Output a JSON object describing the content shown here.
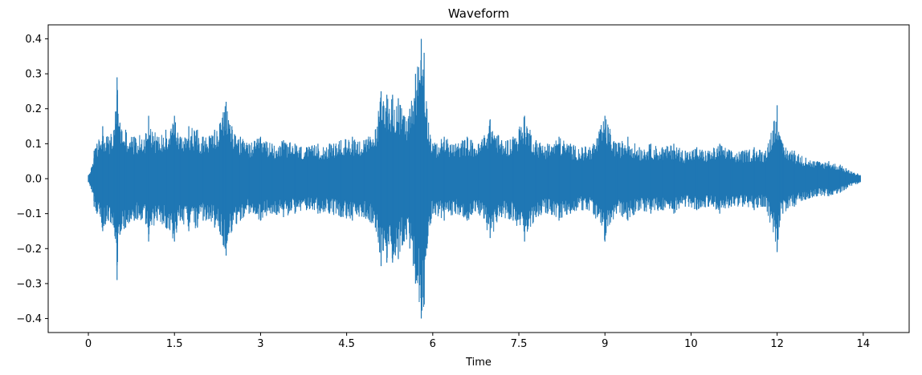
{
  "chart_data": {
    "type": "line",
    "title": "Waveform",
    "xlabel": "Time",
    "ylabel": "",
    "xlim": [
      -0.7,
      14.3
    ],
    "ylim": [
      -0.44,
      0.44
    ],
    "grid": false,
    "legend": "none",
    "x_ticks": [
      {
        "value": 0,
        "label": "0"
      },
      {
        "value": 1.5,
        "label": "1.5"
      },
      {
        "value": 3,
        "label": "3"
      },
      {
        "value": 4.5,
        "label": "4.5"
      },
      {
        "value": 6,
        "label": "6"
      },
      {
        "value": 7.5,
        "label": "7.5"
      },
      {
        "value": 9,
        "label": "9"
      },
      {
        "value": 10.5,
        "label": "10"
      },
      {
        "value": 12,
        "label": "12"
      },
      {
        "value": 13.5,
        "label": "14"
      }
    ],
    "y_ticks": [
      {
        "value": 0.4,
        "label": "0.4"
      },
      {
        "value": 0.3,
        "label": "0.3"
      },
      {
        "value": 0.2,
        "label": "0.2"
      },
      {
        "value": 0.1,
        "label": "0.1"
      },
      {
        "value": 0.0,
        "label": "0.0"
      },
      {
        "value": -0.1,
        "label": "−0.1"
      },
      {
        "value": -0.2,
        "label": "−0.2"
      },
      {
        "value": -0.3,
        "label": "−0.3"
      },
      {
        "value": -0.4,
        "label": "−0.4"
      }
    ],
    "series": [
      {
        "color": "#1f77b4",
        "envelope": {
          "x": [
            0.0,
            0.05,
            0.1,
            0.15,
            0.25,
            0.35,
            0.45,
            0.5,
            0.55,
            0.65,
            0.8,
            1.0,
            1.05,
            1.2,
            1.35,
            1.5,
            1.6,
            1.75,
            1.9,
            2.0,
            2.2,
            2.3,
            2.35,
            2.4,
            2.5,
            2.65,
            2.8,
            3.0,
            3.2,
            3.4,
            3.6,
            3.8,
            4.0,
            4.2,
            4.4,
            4.6,
            4.8,
            5.0,
            5.1,
            5.2,
            5.3,
            5.4,
            5.5,
            5.6,
            5.7,
            5.8,
            5.85,
            5.9,
            6.0,
            6.2,
            6.4,
            6.6,
            6.8,
            7.0,
            7.2,
            7.4,
            7.6,
            7.8,
            8.0,
            8.2,
            8.4,
            8.6,
            8.8,
            9.0,
            9.2,
            9.4,
            9.6,
            9.8,
            10.0,
            10.2,
            10.4,
            10.6,
            10.8,
            11.0,
            11.2,
            11.4,
            11.6,
            11.8,
            12.0,
            12.05,
            12.1,
            12.3,
            12.5,
            12.7,
            12.9,
            13.1,
            13.2,
            13.3,
            13.4,
            13.45
          ],
          "peak": [
            0.01,
            0.03,
            0.08,
            0.1,
            0.15,
            0.12,
            0.14,
            0.29,
            0.16,
            0.14,
            0.12,
            0.13,
            0.18,
            0.12,
            0.14,
            0.18,
            0.12,
            0.15,
            0.14,
            0.12,
            0.14,
            0.16,
            0.19,
            0.22,
            0.15,
            0.12,
            0.1,
            0.12,
            0.1,
            0.11,
            0.1,
            0.09,
            0.1,
            0.1,
            0.11,
            0.12,
            0.11,
            0.14,
            0.25,
            0.24,
            0.24,
            0.23,
            0.18,
            0.2,
            0.3,
            0.4,
            0.36,
            0.2,
            0.1,
            0.12,
            0.1,
            0.12,
            0.1,
            0.17,
            0.11,
            0.12,
            0.18,
            0.11,
            0.1,
            0.12,
            0.1,
            0.09,
            0.1,
            0.18,
            0.1,
            0.12,
            0.09,
            0.1,
            0.09,
            0.1,
            0.08,
            0.09,
            0.08,
            0.1,
            0.08,
            0.08,
            0.09,
            0.08,
            0.21,
            0.12,
            0.1,
            0.08,
            0.06,
            0.05,
            0.05,
            0.04,
            0.03,
            0.02,
            0.015,
            0.01
          ]
        }
      }
    ]
  }
}
